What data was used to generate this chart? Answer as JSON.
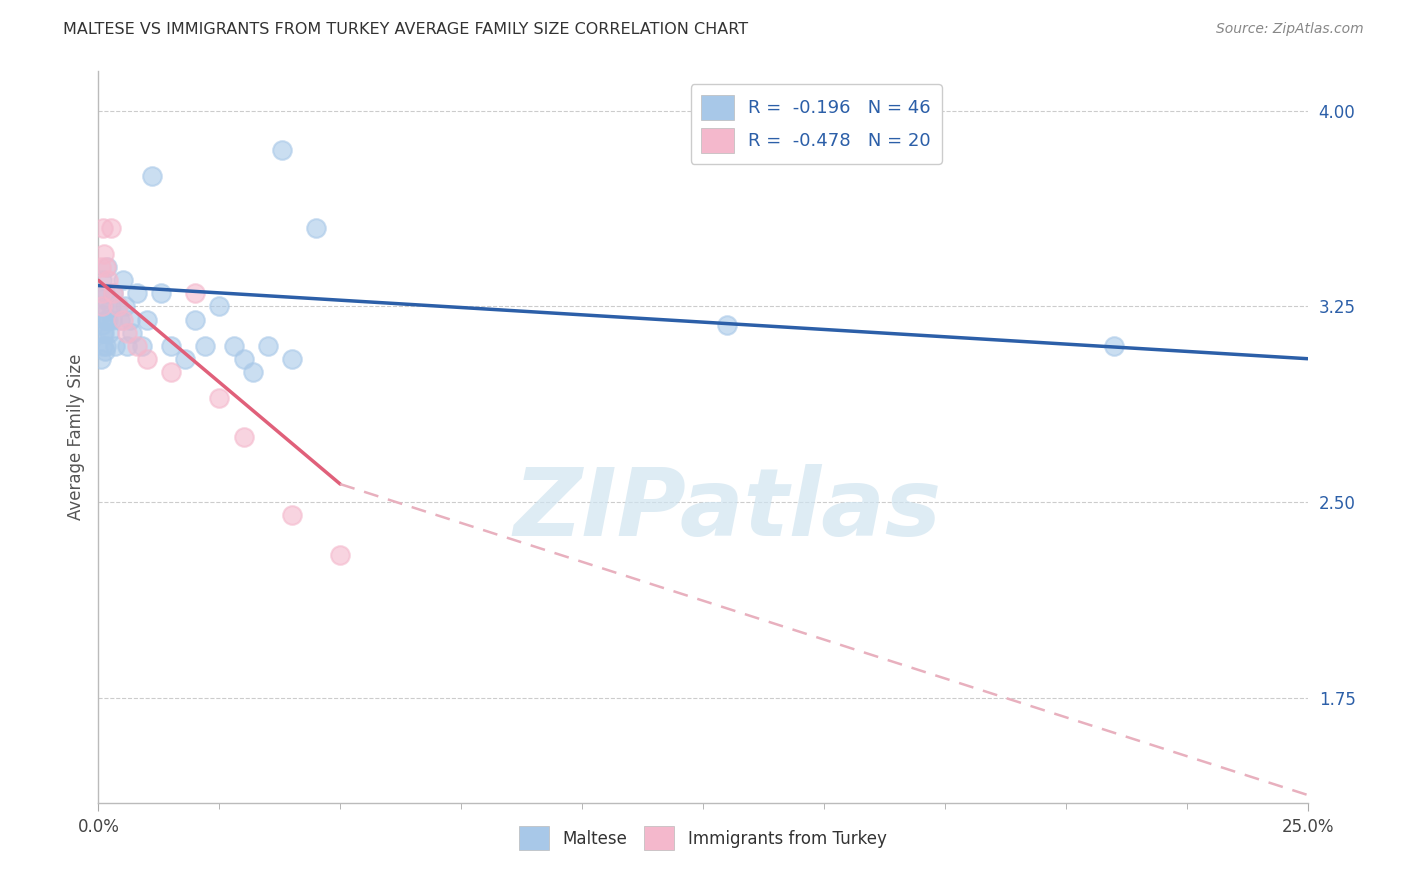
{
  "title": "MALTESE VS IMMIGRANTS FROM TURKEY AVERAGE FAMILY SIZE CORRELATION CHART",
  "source": "Source: ZipAtlas.com",
  "ylabel": "Average Family Size",
  "xlim": [
    0.0,
    25.0
  ],
  "ylim": [
    1.35,
    4.15
  ],
  "yticks_right": [
    1.75,
    2.5,
    3.25,
    4.0
  ],
  "legend_r1": "R =  -0.196   N = 46",
  "legend_r2": "R =  -0.478   N = 20",
  "maltese_color": "#a8c8e8",
  "turkey_color": "#f4b8cc",
  "trend_blue": "#2c5fa8",
  "trend_pink": "#e0607a",
  "trend_pink_dash": "#e8b0be",
  "grid_color": "#cccccc",
  "background_color": "#ffffff",
  "watermark": "ZIPatlas",
  "watermark_color": "#d0e4f0",
  "blue_trend_x0": 0.0,
  "blue_trend_y0": 3.33,
  "blue_trend_x1": 25.0,
  "blue_trend_y1": 3.05,
  "pink_trend_x0": 0.0,
  "pink_trend_y0": 3.35,
  "pink_trend_x1_solid": 5.0,
  "pink_trend_y1_solid": 2.57,
  "pink_trend_x1_dash": 25.0,
  "pink_trend_y1_dash": 1.38,
  "maltese_x": [
    0.05,
    0.07,
    0.08,
    0.1,
    0.1,
    0.12,
    0.13,
    0.15,
    0.16,
    0.18,
    0.2,
    0.22,
    0.25,
    0.28,
    0.3,
    0.35,
    0.4,
    0.45,
    0.5,
    0.55,
    0.6,
    0.65,
    0.7,
    0.8,
    0.9,
    1.0,
    1.1,
    1.3,
    1.5,
    1.8,
    2.0,
    2.2,
    2.5,
    2.8,
    3.0,
    3.2,
    3.5,
    4.0,
    4.5,
    3.8,
    0.06,
    0.09,
    0.11,
    13.0,
    21.0,
    0.14
  ],
  "maltese_y": [
    3.22,
    3.18,
    3.35,
    3.28,
    3.15,
    3.25,
    3.3,
    3.1,
    3.2,
    3.4,
    3.2,
    3.15,
    3.25,
    3.2,
    3.3,
    3.1,
    3.25,
    3.2,
    3.35,
    3.25,
    3.1,
    3.2,
    3.15,
    3.3,
    3.1,
    3.2,
    3.75,
    3.3,
    3.1,
    3.05,
    3.2,
    3.1,
    3.25,
    3.1,
    3.05,
    3.0,
    3.1,
    3.05,
    3.55,
    3.85,
    3.05,
    3.1,
    3.15,
    3.18,
    3.1,
    3.08
  ],
  "turkey_x": [
    0.05,
    0.07,
    0.08,
    0.1,
    0.12,
    0.15,
    0.2,
    0.25,
    0.3,
    0.4,
    0.5,
    0.6,
    0.8,
    1.0,
    1.5,
    2.0,
    2.5,
    3.0,
    4.0,
    5.0
  ],
  "turkey_y": [
    3.4,
    3.3,
    3.25,
    3.55,
    3.45,
    3.4,
    3.35,
    3.55,
    3.3,
    3.25,
    3.2,
    3.15,
    3.1,
    3.05,
    3.0,
    3.3,
    2.9,
    2.75,
    2.45,
    2.3
  ]
}
